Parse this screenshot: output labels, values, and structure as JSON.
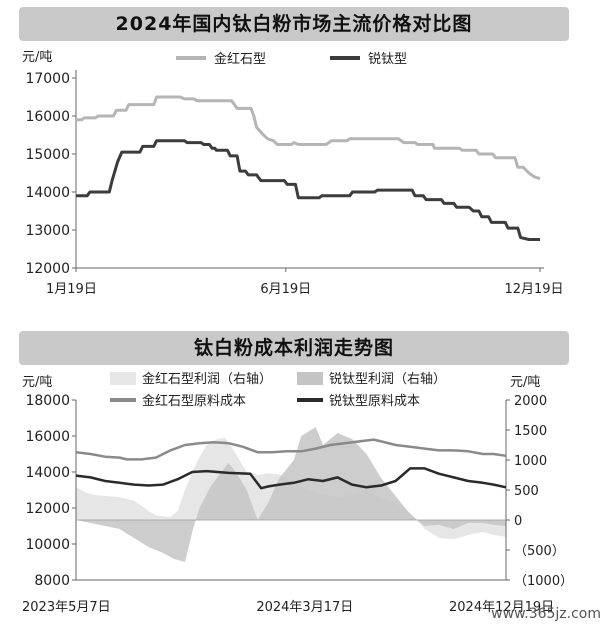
{
  "chart_data": [
    {
      "type": "line",
      "title": "2024年国内钛白粉市场主流价格对比图",
      "yunit": "元/吨",
      "ylim": [
        12000,
        17000
      ],
      "yticks": [
        17000,
        16000,
        15000,
        14000,
        13000,
        12000
      ],
      "xticks": [
        "1月19日",
        "6月19日",
        "12月19日"
      ],
      "xdomain": [
        0,
        334
      ],
      "xtickpos": [
        0,
        151,
        334
      ],
      "legend": [
        "金红石型",
        "锐钛型"
      ],
      "series": [
        {
          "name": "金红石型",
          "color": "#b5b5b5",
          "x": [
            0,
            4,
            6,
            14,
            16,
            27,
            29,
            36,
            38,
            56,
            58,
            75,
            78,
            85,
            87,
            112,
            116,
            126,
            128,
            130,
            135,
            138,
            142,
            145,
            155,
            157,
            160,
            180,
            184,
            195,
            197,
            232,
            236,
            244,
            246,
            257,
            258,
            276,
            278,
            288,
            290,
            300,
            302,
            316,
            318,
            322,
            326,
            330,
            334
          ],
          "y": [
            15900,
            15900,
            15950,
            15950,
            16000,
            16000,
            16150,
            16150,
            16300,
            16300,
            16500,
            16500,
            16450,
            16450,
            16400,
            16400,
            16200,
            16200,
            16000,
            15700,
            15500,
            15400,
            15350,
            15250,
            15250,
            15300,
            15250,
            15250,
            15350,
            15350,
            15400,
            15400,
            15300,
            15300,
            15250,
            15250,
            15150,
            15150,
            15100,
            15100,
            15000,
            15000,
            14900,
            14900,
            14650,
            14650,
            14500,
            14400,
            14350
          ]
        },
        {
          "name": "锐钛型",
          "color": "#3c3c3c",
          "x": [
            0,
            8,
            10,
            24,
            26,
            30,
            33,
            46,
            48,
            56,
            58,
            78,
            80,
            90,
            92,
            96,
            98,
            100,
            101,
            109,
            111,
            116,
            118,
            122,
            124,
            130,
            133,
            150,
            152,
            158,
            160,
            175,
            177,
            197,
            199,
            215,
            217,
            242,
            244,
            250,
            252,
            263,
            265,
            272,
            274,
            283,
            286,
            290,
            292,
            297,
            299,
            309,
            311,
            318,
            320,
            326,
            334
          ],
          "y": [
            13900,
            13900,
            14000,
            14000,
            14300,
            14800,
            15050,
            15050,
            15200,
            15200,
            15350,
            15350,
            15300,
            15300,
            15250,
            15250,
            15150,
            15150,
            15100,
            15100,
            14950,
            14950,
            14550,
            14550,
            14450,
            14450,
            14300,
            14300,
            14200,
            14200,
            13850,
            13850,
            13900,
            13900,
            14000,
            14000,
            14050,
            14050,
            13900,
            13900,
            13800,
            13800,
            13700,
            13700,
            13600,
            13600,
            13500,
            13500,
            13350,
            13350,
            13200,
            13200,
            13050,
            13050,
            12800,
            12750,
            12750
          ]
        }
      ],
      "grid": false,
      "legend_position": "top"
    },
    {
      "type": "area",
      "title": "钛白粉成本利润走势图",
      "yunit_left": "元/吨",
      "yunit_right": "元/吨",
      "ylim_left": [
        8000,
        18000
      ],
      "ylim_right": [
        -1000,
        2000
      ],
      "yticks_left": [
        18000,
        16000,
        14000,
        12000,
        10000,
        8000
      ],
      "yticks_right": [
        "2000",
        "1500",
        "1000",
        "500",
        "0",
        "（500）",
        "（1000）"
      ],
      "yticks_right_values": [
        2000,
        1500,
        1000,
        500,
        0,
        -500,
        -1000
      ],
      "xticks": [
        "2023年5月7日",
        "2024年3月17日",
        "2024年12月19日"
      ],
      "xdomain": [
        0,
        592
      ],
      "xtickpos": [
        0,
        315,
        592
      ],
      "legend": [
        "金红石型利润（右轴）",
        "锐钛型利润（右轴）",
        "金红石型原料成本",
        "锐钛型原料成本"
      ],
      "series": [
        {
          "name": "金红石型利润（右轴）",
          "kind": "area",
          "axis": "right",
          "color": "#e6e6e6",
          "x": [
            0,
            15,
            25,
            40,
            60,
            80,
            100,
            110,
            120,
            130,
            140,
            150,
            160,
            170,
            180,
            195,
            205,
            215,
            225,
            235,
            250,
            265,
            280,
            300,
            320,
            340,
            360,
            380,
            400,
            420,
            440,
            460,
            480,
            500,
            520,
            540,
            560,
            575,
            592
          ],
          "y": [
            550,
            450,
            420,
            400,
            380,
            320,
            150,
            80,
            60,
            50,
            150,
            500,
            800,
            1050,
            1250,
            1350,
            1370,
            1200,
            1000,
            800,
            750,
            780,
            760,
            620,
            500,
            420,
            380,
            420,
            500,
            380,
            280,
            120,
            -150,
            -300,
            -320,
            -250,
            -200,
            -250,
            -280
          ]
        },
        {
          "name": "锐钛型利润（右轴）",
          "kind": "area",
          "axis": "right",
          "color": "#c4c4c4",
          "x": [
            0,
            20,
            40,
            60,
            80,
            100,
            120,
            135,
            150,
            160,
            170,
            185,
            200,
            210,
            220,
            235,
            250,
            265,
            280,
            300,
            310,
            330,
            340,
            360,
            380,
            400,
            420,
            440,
            460,
            480,
            500,
            520,
            540,
            560,
            575,
            592
          ],
          "y": [
            0,
            -50,
            -100,
            -150,
            -300,
            -450,
            -550,
            -650,
            -700,
            -200,
            200,
            550,
            800,
            950,
            800,
            500,
            0,
            300,
            700,
            1000,
            1400,
            1550,
            1250,
            1450,
            1350,
            1100,
            700,
            400,
            100,
            -100,
            -80,
            -150,
            -50,
            -50,
            -80,
            -100
          ]
        },
        {
          "name": "金红石型原料成本",
          "kind": "line",
          "axis": "left",
          "color": "#8a8a8a",
          "x": [
            0,
            20,
            40,
            60,
            70,
            90,
            110,
            130,
            150,
            170,
            190,
            210,
            230,
            250,
            270,
            290,
            310,
            330,
            350,
            370,
            390,
            410,
            420,
            440,
            460,
            480,
            500,
            520,
            540,
            560,
            575,
            592
          ],
          "y": [
            15100,
            15000,
            14850,
            14800,
            14700,
            14700,
            14800,
            15200,
            15500,
            15600,
            15650,
            15600,
            15400,
            15100,
            15100,
            15150,
            15150,
            15300,
            15500,
            15600,
            15700,
            15800,
            15700,
            15500,
            15400,
            15300,
            15200,
            15200,
            15150,
            15000,
            15000,
            14900
          ]
        },
        {
          "name": "锐钛型原料成本",
          "kind": "line",
          "axis": "left",
          "color": "#2a2a2a",
          "x": [
            0,
            20,
            40,
            60,
            80,
            100,
            120,
            140,
            160,
            180,
            195,
            210,
            240,
            255,
            265,
            280,
            300,
            320,
            340,
            360,
            380,
            400,
            420,
            440,
            460,
            480,
            500,
            520,
            540,
            560,
            575,
            592
          ],
          "y": [
            13800,
            13700,
            13500,
            13400,
            13300,
            13250,
            13300,
            13600,
            14000,
            14050,
            14000,
            13950,
            13900,
            13100,
            13200,
            13300,
            13400,
            13600,
            13500,
            13700,
            13300,
            13150,
            13250,
            13500,
            14200,
            14200,
            13900,
            13700,
            13500,
            13400,
            13300,
            13150
          ]
        }
      ],
      "grid": false,
      "legend_position": "top"
    }
  ],
  "footer": {
    "watermark": "www.365jz.com"
  }
}
